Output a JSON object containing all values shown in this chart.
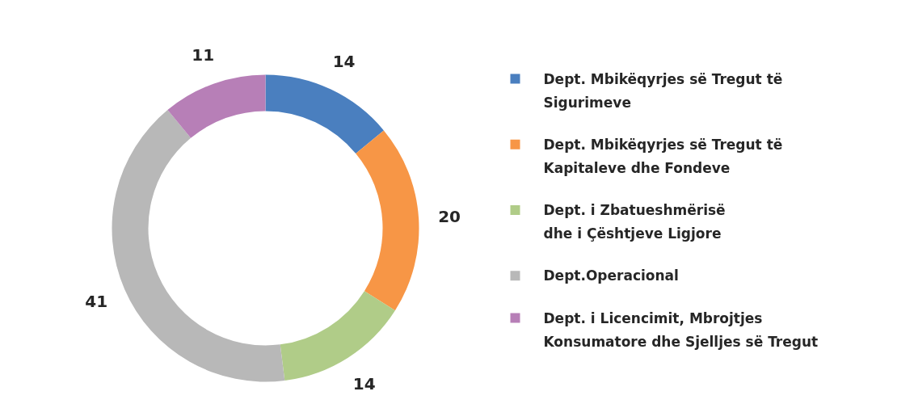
{
  "chart_data": {
    "type": "donut",
    "categories": [
      "Dept. Mbikëqyrjes së Tregut të\nSigurimeve",
      "Dept. Mbikëqyrjes së Tregut të\nKapitaleve dhe Fondeve",
      "Dept. i Zbatueshmërisë\ndhe i Çështjeve Ligjore",
      "Dept.Operacional",
      "Dept. i Licencimit, Mbrojtjes\nKonsumatore dhe Sjelljes së Tregut"
    ],
    "values": [
      14,
      20,
      14,
      41,
      11
    ],
    "colors": [
      "#4a7fbf",
      "#f79646",
      "#b0cc88",
      "#b8b8b8",
      "#b77fb7"
    ],
    "data_labels": true,
    "legend": "right"
  }
}
